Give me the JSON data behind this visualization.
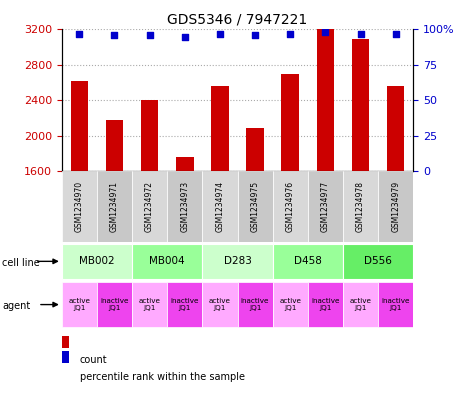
{
  "title": "GDS5346 / 7947221",
  "samples": [
    "GSM1234970",
    "GSM1234971",
    "GSM1234972",
    "GSM1234973",
    "GSM1234974",
    "GSM1234975",
    "GSM1234976",
    "GSM1234977",
    "GSM1234978",
    "GSM1234979"
  ],
  "counts": [
    2620,
    2180,
    2400,
    1760,
    2560,
    2090,
    2700,
    3200,
    3090,
    2560
  ],
  "percentiles": [
    97,
    96,
    96,
    95,
    97,
    96,
    97,
    98,
    97,
    97
  ],
  "ymin": 1600,
  "ymax": 3200,
  "yticks": [
    1600,
    2000,
    2400,
    2800,
    3200
  ],
  "right_yticks": [
    0,
    25,
    50,
    75,
    100
  ],
  "bar_color": "#cc0000",
  "dot_color": "#0000cc",
  "cell_lines": [
    {
      "name": "MB002",
      "cols": [
        0,
        1
      ],
      "color": "#ccffcc"
    },
    {
      "name": "MB004",
      "cols": [
        2,
        3
      ],
      "color": "#99ff99"
    },
    {
      "name": "D283",
      "cols": [
        4,
        5
      ],
      "color": "#ccffcc"
    },
    {
      "name": "D458",
      "cols": [
        6,
        7
      ],
      "color": "#99ff99"
    },
    {
      "name": "D556",
      "cols": [
        8,
        9
      ],
      "color": "#66ee66"
    }
  ],
  "agents": [
    "active\nJQ1",
    "inactive\nJQ1",
    "active\nJQ1",
    "inactive\nJQ1",
    "active\nJQ1",
    "inactive\nJQ1",
    "active\nJQ1",
    "inactive\nJQ1",
    "active\nJQ1",
    "inactive\nJQ1"
  ],
  "agent_active_color": "#ffaaff",
  "agent_inactive_color": "#ee44ee",
  "grid_color": "#aaaaaa",
  "label_color_left": "#cc0000",
  "label_color_right": "#0000cc"
}
